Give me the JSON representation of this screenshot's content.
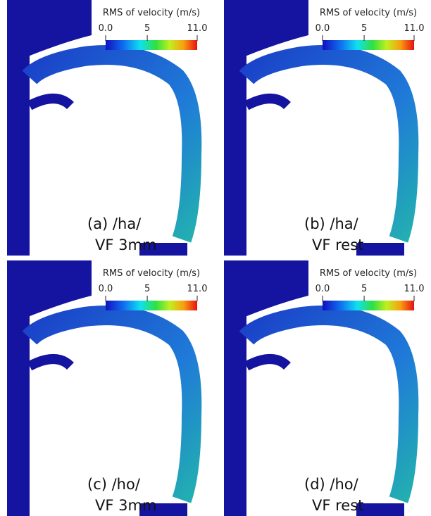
{
  "panels": [
    {
      "colorbar": {
        "title": "RMS of velocity (m/s)",
        "range": [
          0,
          11
        ],
        "ticks": [
          {
            "value": 0,
            "label": "0.0"
          },
          5,
          {
            "value": 11,
            "label": "11.0"
          }
        ]
      },
      "label": [
        "(a) /ha/",
        "VF 3mm"
      ]
    },
    {
      "colorbar": {
        "title": "RMS of velocity (m/s)",
        "range": [
          0,
          11
        ],
        "ticks": [
          {
            "value": 0,
            "label": "0.0"
          },
          5,
          {
            "value": 11,
            "label": "11.0"
          }
        ]
      },
      "label": [
        "(b) /ha/",
        "VF rest"
      ]
    },
    {
      "colorbar": {
        "title": "RMS of velocity (m/s)",
        "range": [
          0,
          11
        ],
        "ticks": [
          {
            "value": 0,
            "label": "0.0"
          },
          5,
          {
            "value": 11,
            "label": "11.0"
          }
        ]
      },
      "label": [
        "(c) /ho/",
        "VF 3mm"
      ]
    },
    {
      "colorbar": {
        "title": "RMS of velocity (m/s)",
        "range": [
          0,
          11
        ],
        "ticks": [
          {
            "value": 0,
            "label": "0.0"
          },
          5,
          {
            "value": 11,
            "label": "11.0"
          }
        ]
      },
      "label": [
        "(d) /ho/",
        "VF rest"
      ]
    }
  ]
}
